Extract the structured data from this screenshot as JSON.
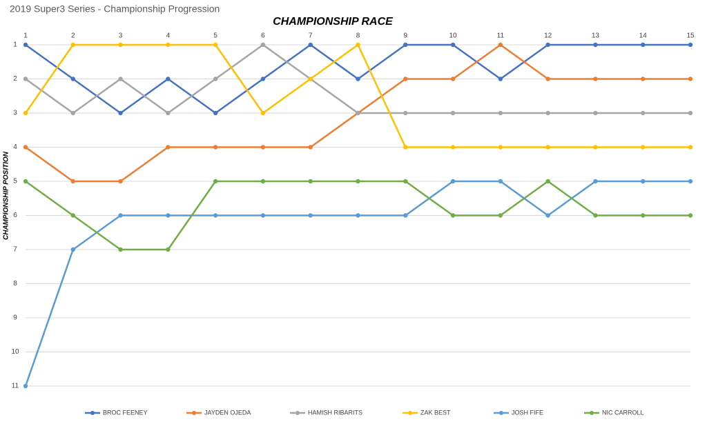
{
  "page_title": "2019 Super3 Series - Championship Progression",
  "chart_data": {
    "type": "line",
    "title": "CHAMPIONSHIP RACE",
    "y_label": "CHAMPIONSHIP POSITION",
    "x": [
      1,
      2,
      3,
      4,
      5,
      6,
      7,
      8,
      9,
      10,
      11,
      12,
      13,
      14,
      15
    ],
    "xlim": [
      1,
      15
    ],
    "xticks": [
      1,
      2,
      3,
      4,
      5,
      6,
      7,
      8,
      9,
      10,
      11,
      12,
      13,
      14,
      15
    ],
    "x_axis_position": "top",
    "ylim": [
      1,
      11
    ],
    "yticks": [
      1,
      2,
      3,
      4,
      5,
      6,
      7,
      8,
      9,
      10,
      11
    ],
    "y_inverted": true,
    "grid": true,
    "legend_position": "bottom",
    "series": [
      {
        "name": "BROC FEENEY",
        "color": "#4472c4",
        "values": [
          1,
          2,
          3,
          2,
          3,
          2,
          1,
          2,
          1,
          1,
          2,
          1,
          1,
          1,
          1
        ]
      },
      {
        "name": "JAYDEN OJEDA",
        "color": "#ed7d31",
        "values": [
          4,
          5,
          5,
          4,
          4,
          4,
          4,
          3,
          2,
          2,
          1,
          2,
          2,
          2,
          2
        ]
      },
      {
        "name": "HAMISH RIBARITS",
        "color": "#a5a5a5",
        "values": [
          2,
          3,
          2,
          3,
          2,
          1,
          2,
          3,
          3,
          3,
          3,
          3,
          3,
          3,
          3
        ]
      },
      {
        "name": "ZAK BEST",
        "color": "#ffc000",
        "values": [
          3,
          1,
          1,
          1,
          1,
          3,
          2,
          1,
          4,
          4,
          4,
          4,
          4,
          4,
          4
        ]
      },
      {
        "name": "JOSH FIFE",
        "color": "#5b9bd5",
        "values": [
          11,
          7,
          6,
          6,
          6,
          6,
          6,
          6,
          6,
          5,
          5,
          6,
          5,
          5,
          5
        ]
      },
      {
        "name": "NIC CARROLL",
        "color": "#70ad47",
        "values": [
          5,
          6,
          7,
          7,
          5,
          5,
          5,
          5,
          5,
          6,
          6,
          5,
          6,
          6,
          6
        ]
      }
    ]
  }
}
